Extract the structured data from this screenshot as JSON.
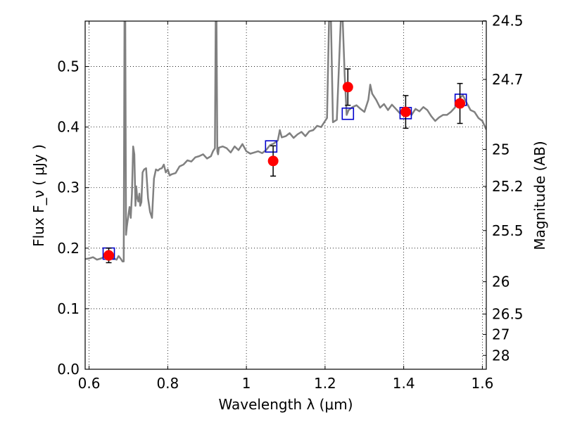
{
  "chart_data": {
    "type": "scatter",
    "xlabel": "Wavelength  λ (μm)",
    "ylabel": "Flux  F_ν  ( μJy )",
    "y2label": "Magnitude (AB)",
    "xlim": [
      0.59,
      1.61
    ],
    "ylim": [
      0.0,
      0.575
    ],
    "x_ticks": [
      0.6,
      0.8,
      1.0,
      1.2,
      1.4,
      1.6
    ],
    "x_tick_labels": [
      "0.6",
      "0.8",
      "1",
      "1.2",
      "1.4",
      "1.6"
    ],
    "y_ticks": [
      0.0,
      0.1,
      0.2,
      0.3,
      0.4,
      0.5
    ],
    "y_tick_labels": [
      "0.0",
      "0.1",
      "0.2",
      "0.3",
      "0.4",
      "0.5"
    ],
    "mag_ticks": [
      24.5,
      24.7,
      25,
      25.2,
      25.5,
      26,
      26.5,
      27,
      28
    ],
    "mag_tick_labels": [
      "24.5",
      "24.7",
      "25",
      "25.2",
      "25.5",
      "26",
      "26.5",
      "27",
      "28"
    ],
    "grid": true,
    "colors": {
      "sed": "#808080",
      "observed": "#ff0000",
      "model_box": "#0000cc",
      "errorbar": "#000000"
    },
    "series": [
      {
        "type": "line",
        "x": [
          0.59,
          0.6,
          0.61,
          0.62,
          0.63,
          0.64,
          0.65,
          0.66,
          0.67,
          0.675,
          0.68,
          0.685,
          0.688,
          0.69,
          0.692,
          0.694,
          0.696,
          0.7,
          0.703,
          0.706,
          0.709,
          0.712,
          0.715,
          0.718,
          0.72,
          0.722,
          0.725,
          0.728,
          0.73,
          0.733,
          0.736,
          0.74,
          0.745,
          0.75,
          0.755,
          0.76,
          0.765,
          0.77,
          0.775,
          0.78,
          0.785,
          0.79,
          0.795,
          0.8,
          0.805,
          0.81,
          0.82,
          0.83,
          0.84,
          0.85,
          0.86,
          0.87,
          0.88,
          0.89,
          0.9,
          0.91,
          0.915,
          0.92,
          0.922,
          0.924,
          0.926,
          0.928,
          0.93,
          0.94,
          0.95,
          0.96,
          0.97,
          0.98,
          0.99,
          1.0,
          1.01,
          1.02,
          1.03,
          1.04,
          1.05,
          1.06,
          1.07,
          1.08,
          1.085,
          1.09,
          1.1,
          1.11,
          1.12,
          1.13,
          1.14,
          1.15,
          1.16,
          1.17,
          1.18,
          1.19,
          1.2,
          1.205,
          1.21,
          1.215,
          1.22,
          1.23,
          1.24,
          1.245,
          1.25,
          1.255,
          1.26,
          1.27,
          1.28,
          1.29,
          1.3,
          1.31,
          1.315,
          1.32,
          1.33,
          1.34,
          1.35,
          1.36,
          1.37,
          1.38,
          1.39,
          1.4,
          1.41,
          1.42,
          1.43,
          1.44,
          1.45,
          1.46,
          1.47,
          1.48,
          1.49,
          1.5,
          1.51,
          1.52,
          1.53,
          1.54,
          1.55,
          1.56,
          1.57,
          1.58,
          1.59,
          1.6,
          1.61
        ],
        "y": [
          0.182,
          0.183,
          0.185,
          0.181,
          0.183,
          0.186,
          0.188,
          0.184,
          0.181,
          0.187,
          0.183,
          0.178,
          0.178,
          0.575,
          0.575,
          0.222,
          0.235,
          0.255,
          0.268,
          0.25,
          0.29,
          0.368,
          0.355,
          0.27,
          0.302,
          0.285,
          0.277,
          0.29,
          0.27,
          0.276,
          0.325,
          0.33,
          0.332,
          0.282,
          0.26,
          0.25,
          0.315,
          0.33,
          0.328,
          0.331,
          0.332,
          0.338,
          0.325,
          0.33,
          0.32,
          0.322,
          0.324,
          0.335,
          0.338,
          0.345,
          0.343,
          0.35,
          0.352,
          0.355,
          0.348,
          0.352,
          0.36,
          0.365,
          0.575,
          0.575,
          0.36,
          0.355,
          0.366,
          0.368,
          0.365,
          0.358,
          0.368,
          0.362,
          0.372,
          0.36,
          0.356,
          0.358,
          0.36,
          0.357,
          0.362,
          0.37,
          0.373,
          0.378,
          0.395,
          0.383,
          0.385,
          0.39,
          0.382,
          0.388,
          0.392,
          0.385,
          0.393,
          0.395,
          0.402,
          0.4,
          0.41,
          0.415,
          0.575,
          0.575,
          0.408,
          0.412,
          0.575,
          0.575,
          0.485,
          0.42,
          0.428,
          0.433,
          0.436,
          0.43,
          0.425,
          0.445,
          0.47,
          0.455,
          0.445,
          0.432,
          0.438,
          0.428,
          0.437,
          0.43,
          0.423,
          0.425,
          0.428,
          0.42,
          0.43,
          0.426,
          0.433,
          0.428,
          0.418,
          0.41,
          0.416,
          0.42,
          0.42,
          0.425,
          0.432,
          0.445,
          0.453,
          0.44,
          0.428,
          0.425,
          0.415,
          0.41,
          0.396
        ]
      },
      {
        "type": "points",
        "x": [
          0.65,
          1.068,
          1.258,
          1.405,
          1.543
        ],
        "y": [
          0.188,
          0.344,
          0.466,
          0.425,
          0.439
        ],
        "yerr": [
          0.012,
          0.025,
          0.03,
          0.027,
          0.033
        ]
      },
      {
        "type": "boxes",
        "x": [
          0.65,
          1.063,
          1.258,
          1.405,
          1.545
        ],
        "y": [
          0.191,
          0.368,
          0.422,
          0.423,
          0.445
        ]
      }
    ]
  }
}
